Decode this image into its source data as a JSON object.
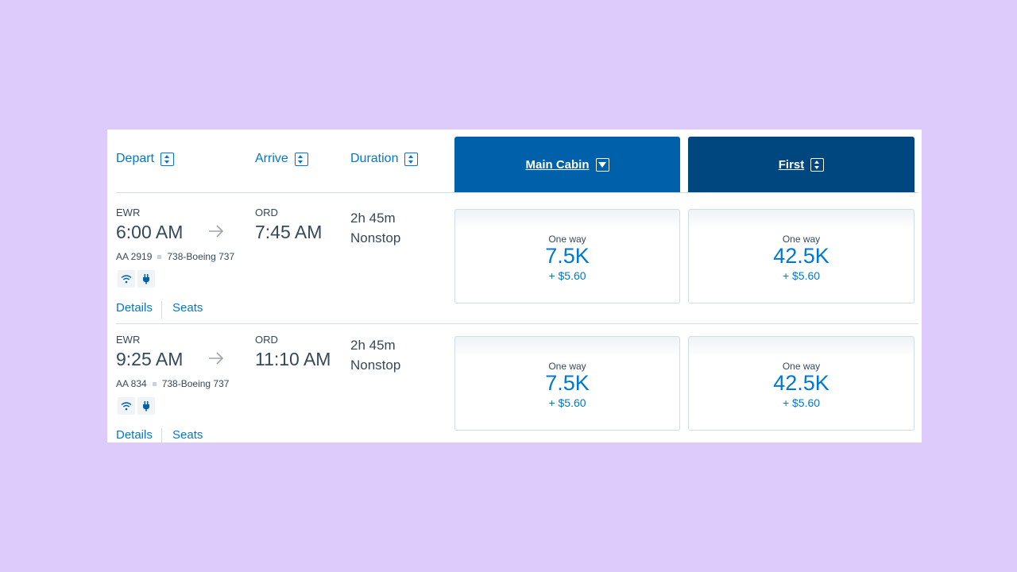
{
  "header": {
    "depart_label": "Depart",
    "arrive_label": "Arrive",
    "duration_label": "Duration",
    "cabins": [
      {
        "label": "Main Cabin"
      },
      {
        "label": "First"
      }
    ]
  },
  "flights": [
    {
      "origin": "EWR",
      "depart_time": "6:00 AM",
      "destination": "ORD",
      "arrive_time": "7:45 AM",
      "duration": "2h 45m",
      "stops": "Nonstop",
      "flight_number": "AA 2919",
      "aircraft": "738-Boeing 737",
      "details_label": "Details",
      "seats_label": "Seats",
      "fares": [
        {
          "label": "One way",
          "points": "7.5K",
          "taxes": "+ $5.60"
        },
        {
          "label": "One way",
          "points": "42.5K",
          "taxes": "+ $5.60"
        }
      ]
    },
    {
      "origin": "EWR",
      "depart_time": "9:25 AM",
      "destination": "ORD",
      "arrive_time": "11:10 AM",
      "duration": "2h 45m",
      "stops": "Nonstop",
      "flight_number": "AA 834",
      "aircraft": "738-Boeing 737",
      "details_label": "Details",
      "seats_label": "Seats",
      "fares": [
        {
          "label": "One way",
          "points": "7.5K",
          "taxes": "+ $5.60"
        },
        {
          "label": "One way",
          "points": "42.5K",
          "taxes": "+ $5.60"
        }
      ]
    }
  ],
  "icons": {
    "amenity_1": "wifi-icon",
    "amenity_2": "power-outlet-icon",
    "arrow": "arrow-right-icon"
  },
  "colors": {
    "background": "#dccbfb",
    "link": "#0078d2",
    "main_cabin": "#0061ab",
    "first": "#00467f",
    "text": "#36495a"
  }
}
